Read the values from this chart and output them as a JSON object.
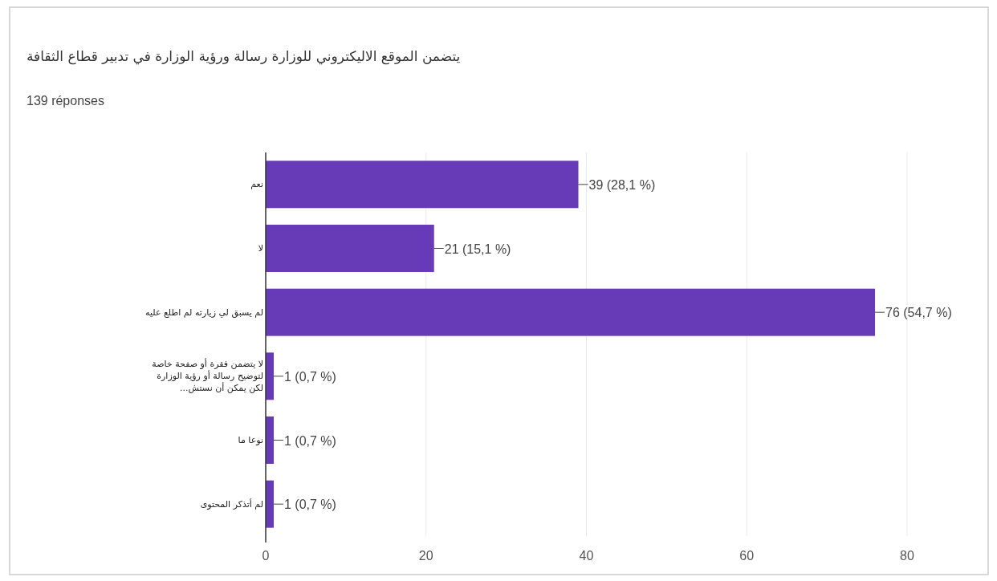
{
  "chart_data": {
    "type": "bar",
    "orientation": "horizontal",
    "title": "يتضمن الموقع الاليكتروني للوزارة رسالة ورؤية الوزارة في تدبير قطاع الثقافة",
    "subtitle": "139 réponses",
    "categories": [
      "نعم",
      "لا",
      "لم يسبق لي زيارته لم اطلع عليه",
      "لا يتضمن فقرة أو صفحة خاصة لتوضيح رسالة أو رؤية الوزارة لكن يمكن أن نستش...",
      "نوعا ما",
      "لم أتذكر المحتوى"
    ],
    "values": [
      39,
      21,
      76,
      1,
      1,
      1
    ],
    "value_labels": [
      "39 (28,1 %)",
      "21 (15,1 %)",
      "76 (54,7 %)",
      "1 (0,7 %)",
      "1 (0,7 %)",
      "1 (0,7 %)"
    ],
    "color": "#673ab7",
    "xlim": [
      0,
      80
    ],
    "xticks": [
      0,
      20,
      40,
      60,
      80
    ],
    "grid": "x"
  }
}
